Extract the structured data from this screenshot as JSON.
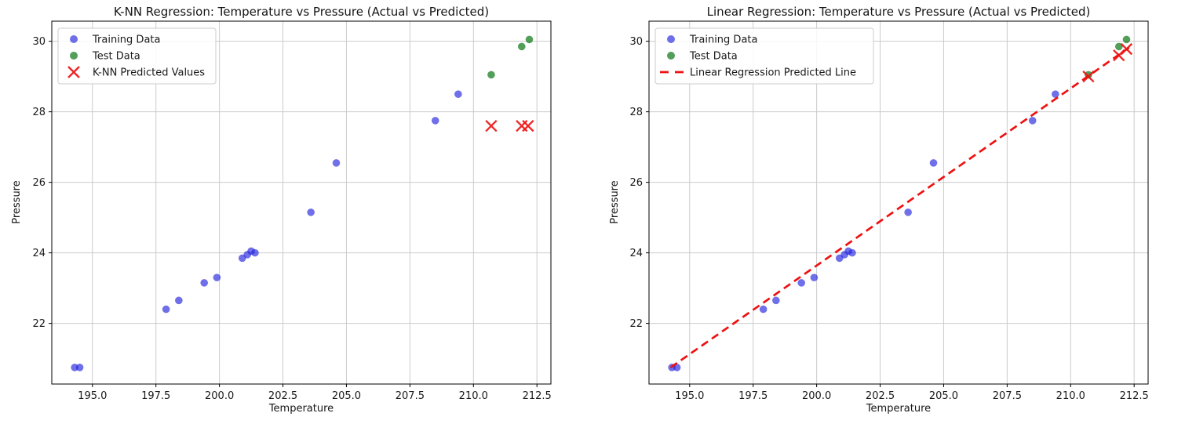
{
  "figure": {
    "background": "#ffffff",
    "grid_color": "#cbcbcb",
    "spine_color": "#000000",
    "text_color": "#1a1a1a"
  },
  "chart_data": [
    {
      "type": "scatter",
      "title": "K-NN Regression: Temperature vs Pressure (Actual vs Predicted)",
      "xlabel": "Temperature",
      "ylabel": "Pressure",
      "xlim": [
        193.4,
        213.05
      ],
      "ylim": [
        20.28,
        30.57
      ],
      "xtick_values": [
        195.0,
        197.5,
        200.0,
        202.5,
        205.0,
        207.5,
        210.0,
        212.5
      ],
      "xtick_labels": [
        "195.0",
        "197.5",
        "200.0",
        "202.5",
        "205.0",
        "207.5",
        "210.0",
        "212.5"
      ],
      "ytick_values": [
        22,
        24,
        26,
        28,
        30
      ],
      "ytick_labels": [
        "22",
        "24",
        "26",
        "28",
        "30"
      ],
      "grid": true,
      "legend_position": "upper left",
      "series": [
        {
          "id": "training-point",
          "name": "Training Data",
          "kind": "scatter",
          "marker": "circle",
          "color": "#2222dd",
          "opacity": 0.65,
          "in_legend": true,
          "points": [
            [
              194.3,
              20.75
            ],
            [
              194.5,
              20.75
            ],
            [
              197.9,
              22.4
            ],
            [
              198.4,
              22.65
            ],
            [
              199.4,
              23.15
            ],
            [
              199.9,
              23.3
            ],
            [
              200.9,
              23.85
            ],
            [
              201.1,
              23.95
            ],
            [
              201.25,
              24.05
            ],
            [
              201.4,
              24.0
            ],
            [
              203.6,
              25.15
            ],
            [
              204.6,
              26.55
            ],
            [
              208.5,
              27.75
            ],
            [
              209.4,
              28.5
            ]
          ]
        },
        {
          "id": "test-point",
          "name": "Test Data",
          "kind": "scatter",
          "marker": "circle",
          "color": "#107818",
          "opacity": 0.72,
          "in_legend": true,
          "points": [
            [
              210.7,
              29.05
            ],
            [
              211.9,
              29.85
            ],
            [
              212.2,
              30.05
            ]
          ]
        },
        {
          "id": "knn-predicted-x-marker",
          "name": "K-NN Predicted Values",
          "kind": "scatter",
          "marker": "x",
          "color": "#ee1111",
          "opacity": 0.9,
          "in_legend": true,
          "points": [
            [
              210.7,
              27.6
            ],
            [
              211.9,
              27.6
            ],
            [
              212.15,
              27.6
            ]
          ]
        }
      ]
    },
    {
      "type": "scatter",
      "title": "Linear Regression: Temperature vs Pressure (Actual vs Predicted)",
      "xlabel": "Temperature",
      "ylabel": "Pressure",
      "xlim": [
        193.4,
        213.05
      ],
      "ylim": [
        20.28,
        30.57
      ],
      "xtick_values": [
        195.0,
        197.5,
        200.0,
        202.5,
        205.0,
        207.5,
        210.0,
        212.5
      ],
      "xtick_labels": [
        "195.0",
        "197.5",
        "200.0",
        "202.5",
        "205.0",
        "207.5",
        "210.0",
        "212.5"
      ],
      "ytick_values": [
        22,
        24,
        26,
        28,
        30
      ],
      "ytick_labels": [
        "22",
        "24",
        "26",
        "28",
        "30"
      ],
      "grid": true,
      "legend_position": "upper left",
      "series": [
        {
          "id": "training-point",
          "name": "Training Data",
          "kind": "scatter",
          "marker": "circle",
          "color": "#2222dd",
          "opacity": 0.65,
          "in_legend": true,
          "points": [
            [
              194.3,
              20.75
            ],
            [
              194.5,
              20.75
            ],
            [
              197.9,
              22.4
            ],
            [
              198.4,
              22.65
            ],
            [
              199.4,
              23.15
            ],
            [
              199.9,
              23.3
            ],
            [
              200.9,
              23.85
            ],
            [
              201.1,
              23.95
            ],
            [
              201.25,
              24.05
            ],
            [
              201.4,
              24.0
            ],
            [
              203.6,
              25.15
            ],
            [
              204.6,
              26.55
            ],
            [
              208.5,
              27.75
            ],
            [
              209.4,
              28.5
            ]
          ]
        },
        {
          "id": "test-point",
          "name": "Test Data",
          "kind": "scatter",
          "marker": "circle",
          "color": "#107818",
          "opacity": 0.72,
          "in_legend": true,
          "points": [
            [
              210.7,
              29.05
            ],
            [
              211.9,
              29.85
            ],
            [
              212.2,
              30.05
            ]
          ]
        },
        {
          "id": "regression-line",
          "name": "Linear Regression Predicted Line",
          "kind": "line",
          "dashed": true,
          "color": "#ee1111",
          "opacity": 1,
          "in_legend": true,
          "points": [
            [
              194.25,
              20.75
            ],
            [
              212.3,
              29.82
            ]
          ]
        },
        {
          "id": "linear-predicted-x-marker",
          "name": "Linear Predicted Values",
          "kind": "scatter",
          "marker": "x",
          "color": "#ee1111",
          "opacity": 0.9,
          "in_legend": false,
          "points": [
            [
              210.7,
              29.0
            ],
            [
              211.9,
              29.6
            ],
            [
              212.2,
              29.78
            ]
          ]
        }
      ]
    }
  ]
}
